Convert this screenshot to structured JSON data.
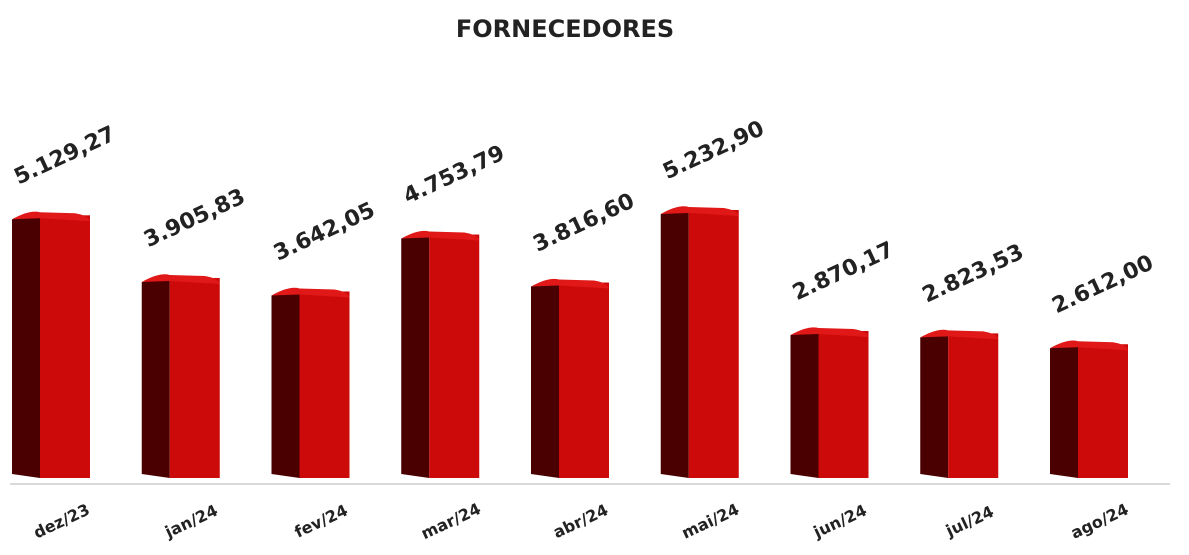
{
  "chart_data": {
    "type": "bar",
    "title": "FORNECEDORES",
    "categories": [
      "dez/23",
      "jan/24",
      "fev/24",
      "mar/24",
      "abr/24",
      "mai/24",
      "jun/24",
      "jul/24",
      "ago/24"
    ],
    "values": [
      5129.27,
      3905.83,
      3642.05,
      4753.79,
      3816.6,
      5232.9,
      2870.17,
      2823.53,
      2612.0
    ],
    "value_labels": [
      "5.129,27",
      "3.905,83",
      "3.642,05",
      "4.753,79",
      "3.816,60",
      "5.232,90",
      "2.870,17",
      "2.823,53",
      "2.612,00"
    ],
    "color": "#cc0a0a"
  }
}
